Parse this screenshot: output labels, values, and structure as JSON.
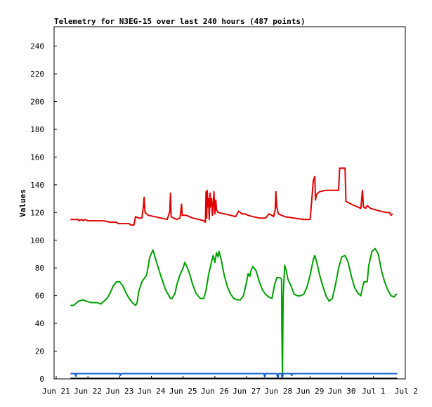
{
  "chart_data": {
    "type": "line",
    "title": "Telemetry for N3EG-15 over last 240 hours (487 points)",
    "xlabel": "",
    "ylabel": "Values",
    "ylim": [
      0,
      254
    ],
    "yticks": [
      0,
      20,
      40,
      60,
      80,
      100,
      120,
      140,
      160,
      180,
      200,
      220,
      240
    ],
    "xlim": [
      0,
      11
    ],
    "xticks": [
      {
        "x": 0,
        "label": "Jun 21"
      },
      {
        "x": 1,
        "label": "Jun 22"
      },
      {
        "x": 2,
        "label": "Jun 23"
      },
      {
        "x": 3,
        "label": "Jun 24"
      },
      {
        "x": 4,
        "label": "Jun 25"
      },
      {
        "x": 5,
        "label": "Jun 26"
      },
      {
        "x": 6,
        "label": "Jun 27"
      },
      {
        "x": 7,
        "label": "Jun 28"
      },
      {
        "x": 8,
        "label": "Jun 29"
      },
      {
        "x": 9,
        "label": "Jun 30"
      },
      {
        "x": 10,
        "label": "Jul 1"
      },
      {
        "x": 11,
        "label": "Jul 2"
      }
    ],
    "grid": false,
    "legend": "none",
    "series": [
      {
        "color": "#e00000",
        "points": [
          [
            0.45,
            115
          ],
          [
            0.7,
            115
          ],
          [
            0.72,
            114
          ],
          [
            0.8,
            115
          ],
          [
            0.85,
            114
          ],
          [
            0.9,
            115
          ],
          [
            1.0,
            114
          ],
          [
            1.5,
            114
          ],
          [
            1.7,
            113
          ],
          [
            1.9,
            113
          ],
          [
            1.95,
            112
          ],
          [
            2.3,
            112
          ],
          [
            2.35,
            111
          ],
          [
            2.45,
            111
          ],
          [
            2.5,
            117
          ],
          [
            2.6,
            116
          ],
          [
            2.7,
            116
          ],
          [
            2.75,
            125
          ],
          [
            2.77,
            131
          ],
          [
            2.8,
            120
          ],
          [
            2.9,
            118
          ],
          [
            3.1,
            117
          ],
          [
            3.3,
            116
          ],
          [
            3.5,
            115
          ],
          [
            3.58,
            121
          ],
          [
            3.6,
            134
          ],
          [
            3.62,
            117
          ],
          [
            3.7,
            116
          ],
          [
            3.8,
            115
          ],
          [
            3.9,
            116
          ],
          [
            3.95,
            126
          ],
          [
            3.97,
            118
          ],
          [
            4.1,
            118
          ],
          [
            4.3,
            116
          ],
          [
            4.5,
            115
          ],
          [
            4.65,
            114
          ],
          [
            4.7,
            113
          ],
          [
            4.72,
            135
          ],
          [
            4.74,
            116
          ],
          [
            4.76,
            136
          ],
          [
            4.78,
            124
          ],
          [
            4.8,
            130
          ],
          [
            4.82,
            115
          ],
          [
            4.85,
            134
          ],
          [
            4.87,
            124
          ],
          [
            4.9,
            130
          ],
          [
            4.92,
            118
          ],
          [
            4.95,
            126
          ],
          [
            4.97,
            135
          ],
          [
            5.0,
            119
          ],
          [
            5.03,
            129
          ],
          [
            5.05,
            122
          ],
          [
            5.1,
            120
          ],
          [
            5.3,
            119
          ],
          [
            5.5,
            118
          ],
          [
            5.65,
            117
          ],
          [
            5.75,
            121
          ],
          [
            5.85,
            119
          ],
          [
            5.95,
            119
          ],
          [
            6.05,
            118
          ],
          [
            6.2,
            117
          ],
          [
            6.4,
            116
          ],
          [
            6.6,
            116
          ],
          [
            6.7,
            119
          ],
          [
            6.8,
            118
          ],
          [
            6.85,
            117
          ],
          [
            6.9,
            122
          ],
          [
            6.92,
            135
          ],
          [
            6.95,
            124
          ],
          [
            7.0,
            119
          ],
          [
            7.2,
            117
          ],
          [
            7.5,
            116
          ],
          [
            7.8,
            115
          ],
          [
            8.0,
            115
          ],
          [
            8.05,
            128
          ],
          [
            8.1,
            143
          ],
          [
            8.15,
            146
          ],
          [
            8.17,
            129
          ],
          [
            8.2,
            133
          ],
          [
            8.3,
            135
          ],
          [
            8.5,
            136
          ],
          [
            8.9,
            136
          ],
          [
            8.93,
            152
          ],
          [
            9.1,
            152
          ],
          [
            9.13,
            128
          ],
          [
            9.3,
            126
          ],
          [
            9.5,
            124
          ],
          [
            9.6,
            123
          ],
          [
            9.65,
            136
          ],
          [
            9.68,
            124
          ],
          [
            9.75,
            123
          ],
          [
            9.8,
            125
          ],
          [
            9.9,
            123
          ],
          [
            10.2,
            121
          ],
          [
            10.4,
            120
          ],
          [
            10.5,
            120
          ],
          [
            10.55,
            118
          ],
          [
            10.6,
            119
          ]
        ]
      },
      {
        "color": "#00a000",
        "points": [
          [
            0.45,
            53
          ],
          [
            0.55,
            53
          ],
          [
            0.7,
            56
          ],
          [
            0.85,
            57
          ],
          [
            0.95,
            56
          ],
          [
            1.1,
            55
          ],
          [
            1.3,
            55
          ],
          [
            1.4,
            54
          ],
          [
            1.6,
            58
          ],
          [
            1.7,
            62
          ],
          [
            1.8,
            67
          ],
          [
            1.9,
            70
          ],
          [
            2.0,
            70
          ],
          [
            2.1,
            67
          ],
          [
            2.2,
            62
          ],
          [
            2.3,
            58
          ],
          [
            2.4,
            55
          ],
          [
            2.5,
            53
          ],
          [
            2.55,
            55
          ],
          [
            2.6,
            63
          ],
          [
            2.7,
            70
          ],
          [
            2.85,
            75
          ],
          [
            2.95,
            88
          ],
          [
            3.05,
            93
          ],
          [
            3.15,
            85
          ],
          [
            3.3,
            74
          ],
          [
            3.45,
            64
          ],
          [
            3.6,
            58
          ],
          [
            3.65,
            58
          ],
          [
            3.75,
            62
          ],
          [
            3.8,
            68
          ],
          [
            3.9,
            75
          ],
          [
            4.0,
            80
          ],
          [
            4.05,
            84
          ],
          [
            4.1,
            82
          ],
          [
            4.2,
            76
          ],
          [
            4.3,
            68
          ],
          [
            4.4,
            62
          ],
          [
            4.5,
            59
          ],
          [
            4.55,
            58
          ],
          [
            4.65,
            58
          ],
          [
            4.72,
            64
          ],
          [
            4.8,
            75
          ],
          [
            4.9,
            85
          ],
          [
            4.95,
            89
          ],
          [
            5.0,
            84
          ],
          [
            5.05,
            91
          ],
          [
            5.1,
            88
          ],
          [
            5.13,
            92
          ],
          [
            5.2,
            86
          ],
          [
            5.3,
            74
          ],
          [
            5.4,
            66
          ],
          [
            5.5,
            61
          ],
          [
            5.6,
            58
          ],
          [
            5.7,
            57
          ],
          [
            5.8,
            57
          ],
          [
            5.9,
            60
          ],
          [
            6.0,
            70
          ],
          [
            6.05,
            76
          ],
          [
            6.1,
            74
          ],
          [
            6.15,
            79
          ],
          [
            6.2,
            81
          ],
          [
            6.3,
            78
          ],
          [
            6.4,
            70
          ],
          [
            6.5,
            64
          ],
          [
            6.6,
            61
          ],
          [
            6.7,
            59
          ],
          [
            6.8,
            58
          ],
          [
            6.88,
            68
          ],
          [
            6.95,
            73
          ],
          [
            7.05,
            73
          ],
          [
            7.1,
            72
          ],
          [
            7.11,
            38
          ],
          [
            7.13,
            2
          ],
          [
            7.15,
            60
          ],
          [
            7.2,
            82
          ],
          [
            7.25,
            78
          ],
          [
            7.3,
            72
          ],
          [
            7.4,
            67
          ],
          [
            7.5,
            61
          ],
          [
            7.6,
            60
          ],
          [
            7.7,
            60
          ],
          [
            7.8,
            61
          ],
          [
            7.9,
            66
          ],
          [
            8.0,
            75
          ],
          [
            8.1,
            86
          ],
          [
            8.15,
            89
          ],
          [
            8.2,
            85
          ],
          [
            8.3,
            75
          ],
          [
            8.4,
            67
          ],
          [
            8.5,
            60
          ],
          [
            8.6,
            56
          ],
          [
            8.7,
            58
          ],
          [
            8.8,
            68
          ],
          [
            8.9,
            80
          ],
          [
            9.0,
            88
          ],
          [
            9.1,
            89
          ],
          [
            9.2,
            84
          ],
          [
            9.3,
            74
          ],
          [
            9.4,
            66
          ],
          [
            9.5,
            62
          ],
          [
            9.6,
            60
          ],
          [
            9.65,
            66
          ],
          [
            9.7,
            70
          ],
          [
            9.8,
            70
          ],
          [
            9.85,
            82
          ],
          [
            9.95,
            92
          ],
          [
            10.05,
            94
          ],
          [
            10.15,
            90
          ],
          [
            10.25,
            78
          ],
          [
            10.35,
            70
          ],
          [
            10.45,
            64
          ],
          [
            10.55,
            60
          ],
          [
            10.65,
            59
          ],
          [
            10.7,
            61
          ],
          [
            10.75,
            61
          ]
        ]
      },
      {
        "color": "#1060d0",
        "points": [
          [
            0.45,
            3.8
          ],
          [
            0.6,
            3.8
          ],
          [
            0.62,
            2
          ],
          [
            0.64,
            3.8
          ],
          [
            2.0,
            3.8
          ],
          [
            2.02,
            2.5
          ],
          [
            2.05,
            3.8
          ],
          [
            6.55,
            3.8
          ],
          [
            6.57,
            1.5
          ],
          [
            6.6,
            3.8
          ],
          [
            6.95,
            3.8
          ],
          [
            6.98,
            0.6
          ],
          [
            7.01,
            3.8
          ],
          [
            7.1,
            3.8
          ],
          [
            7.12,
            0
          ],
          [
            7.15,
            3.8
          ],
          [
            7.4,
            3.8
          ],
          [
            7.42,
            2.5
          ],
          [
            7.45,
            3.8
          ],
          [
            10.75,
            3.8
          ]
        ]
      },
      {
        "color": "#000000",
        "points": [
          [
            0.45,
            0.3
          ],
          [
            10.75,
            0.3
          ]
        ]
      }
    ]
  }
}
